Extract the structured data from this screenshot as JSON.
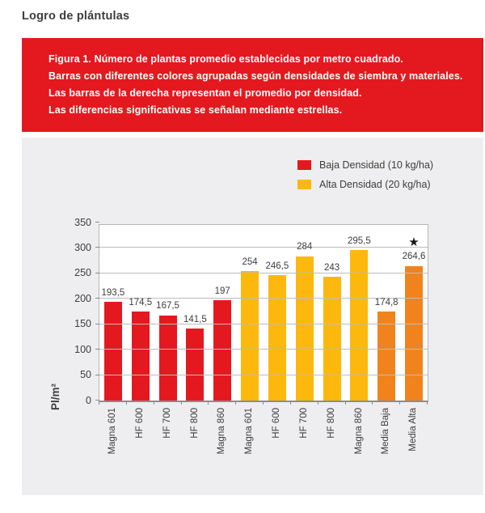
{
  "page_title": "Logro de plántulas",
  "banner": {
    "bg_color": "#e4191f",
    "lines": [
      "Figura 1. Número de plantas promedio establecidas por metro cuadrado.",
      "Barras con diferentes colores agrupadas según densidades de siembra y materiales.",
      "Las barras de la derecha representan el promedio por densidad.",
      "Las diferencias significativas se señalan mediante estrellas."
    ]
  },
  "legend": {
    "position": "top-right",
    "items": [
      {
        "label": "Baja Densidad (10 kg/ha)",
        "color_key": "red"
      },
      {
        "label": "Alta Densidad (20 kg/ha)",
        "color_key": "yellow"
      }
    ]
  },
  "chart_data": {
    "type": "bar",
    "title": "Figura 1. Número de plantas promedio establecidas por metro cuadrado.",
    "xlabel": "",
    "ylabel": "Pl/m²",
    "ylim": [
      0,
      350
    ],
    "yticks": [
      0,
      50,
      100,
      150,
      200,
      250,
      300,
      350
    ],
    "grid": true,
    "legend_position": "top-right",
    "categories": [
      "Magna 601",
      "HF 600",
      "HF 700",
      "HF 800",
      "Magna 860",
      "Magna 601",
      "HF 600",
      "HF 700",
      "HF 800",
      "Magna 860",
      "Media Baja",
      "Media Alta"
    ],
    "values": [
      193.5,
      174.5,
      167.5,
      141.5,
      197,
      254,
      246.5,
      284,
      243,
      295.5,
      174.8,
      264.6
    ],
    "value_labels": [
      "193,5",
      "174,5",
      "167,5",
      "141,5",
      "197",
      "254",
      "246,5",
      "284",
      "243",
      "295,5",
      "174,8",
      "264,6"
    ],
    "bar_color_keys": [
      "red",
      "red",
      "red",
      "red",
      "red",
      "yellow",
      "yellow",
      "yellow",
      "yellow",
      "yellow",
      "orange",
      "orange"
    ],
    "star_flags": [
      false,
      false,
      false,
      false,
      false,
      false,
      false,
      false,
      false,
      false,
      false,
      true
    ],
    "star_symbol": "★",
    "palette": {
      "red": "#e4191f",
      "yellow": "#fcb80d",
      "orange": "#f1831d"
    },
    "annotations": [
      {
        "type": "star",
        "category": "Media Alta",
        "meaning": "diferencia significativa"
      }
    ]
  }
}
